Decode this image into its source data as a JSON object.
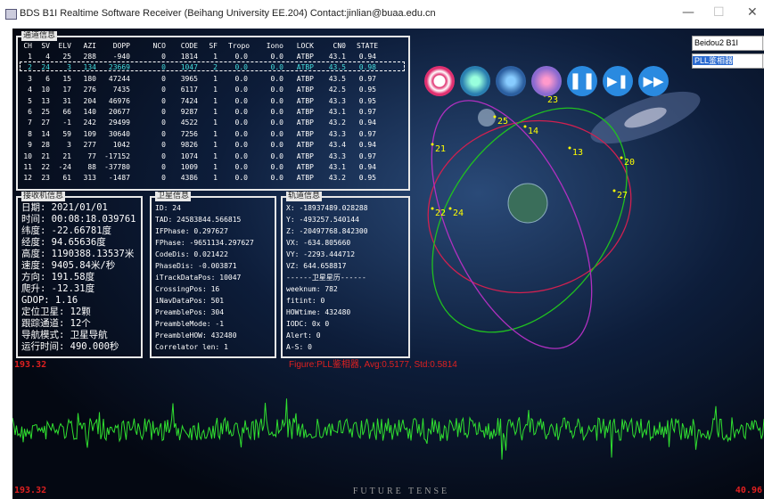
{
  "window": {
    "title": "BDS B1I Realtime Software Receiver (Beihang University EE.204) Contact:jinlian@buaa.edu.cn"
  },
  "dropdowns": [
    "Beidou2 B1I",
    "PLL鉴相器"
  ],
  "channel_panel": {
    "title": "通道信息",
    "headers": [
      "CH",
      "SV",
      "ELV",
      "AZI",
      "DOPP",
      "NCO",
      "CODE",
      "SF",
      "Tropo",
      "Iono",
      "LOCK",
      "CN0",
      "STATE"
    ],
    "rows": [
      [
        "1",
        "4",
        "25",
        "288",
        "-940",
        "0",
        "1814",
        "1",
        "0.0",
        "0.0",
        "ATBP",
        "43.1",
        "0.94"
      ],
      [
        "2",
        "24",
        "3",
        "134",
        "23669",
        "0",
        "1047",
        "2",
        "0.0",
        "0.0",
        "ATBP",
        "43.5",
        "0.98"
      ],
      [
        "3",
        "6",
        "15",
        "180",
        "47244",
        "0",
        "3965",
        "1",
        "0.0",
        "0.0",
        "ATBP",
        "43.5",
        "0.97"
      ],
      [
        "4",
        "10",
        "17",
        "276",
        "7435",
        "0",
        "6117",
        "1",
        "0.0",
        "0.0",
        "ATBP",
        "42.5",
        "0.95"
      ],
      [
        "5",
        "13",
        "31",
        "204",
        "46976",
        "0",
        "7424",
        "1",
        "0.0",
        "0.0",
        "ATBP",
        "43.3",
        "0.95"
      ],
      [
        "6",
        "25",
        "66",
        "140",
        "20677",
        "0",
        "9287",
        "1",
        "0.0",
        "0.0",
        "ATBP",
        "43.1",
        "0.97"
      ],
      [
        "7",
        "27",
        "-1",
        "242",
        "29499",
        "0",
        "4522",
        "1",
        "0.0",
        "0.0",
        "ATBP",
        "43.2",
        "0.94"
      ],
      [
        "8",
        "14",
        "59",
        "109",
        "30640",
        "0",
        "7256",
        "1",
        "0.0",
        "0.0",
        "ATBP",
        "43.3",
        "0.97"
      ],
      [
        "9",
        "28",
        "3",
        "277",
        "1042",
        "0",
        "9826",
        "1",
        "0.0",
        "0.0",
        "ATBP",
        "43.4",
        "0.94"
      ],
      [
        "10",
        "21",
        "21",
        "77",
        "-17152",
        "0",
        "1074",
        "1",
        "0.0",
        "0.0",
        "ATBP",
        "43.3",
        "0.97"
      ],
      [
        "11",
        "22",
        "-24",
        "88",
        "-37780",
        "0",
        "1009",
        "1",
        "0.0",
        "0.0",
        "ATBP",
        "43.1",
        "0.94"
      ],
      [
        "12",
        "23",
        "61",
        "313",
        "-1487",
        "0",
        "4386",
        "1",
        "0.0",
        "0.0",
        "ATBP",
        "43.2",
        "0.95"
      ]
    ]
  },
  "receiver_panel": {
    "title": "接收机信息",
    "lines": [
      "日期: 2021/01/01",
      "时间: 00:08:18.039761",
      "纬度: -22.66781度",
      "经度: 94.65636度",
      "高度: 1190388.13537米",
      "速度: 9405.84米/秒",
      "方向: 191.58度",
      "爬升: -12.31度",
      "GDOP: 1.16",
      "定位卫星: 12颗",
      "跟踪通道: 12个",
      "导航模式: 卫星导航",
      "运行时间: 490.000秒"
    ]
  },
  "satellite_panel": {
    "title": "卫星信息",
    "lines": [
      "ID: 24",
      "TAD: 24583844.566815",
      "IFPhase: 0.297627",
      "FPhase: -9651134.297627",
      "CodeDis: 0.021422",
      "PhaseDis: -0.003871",
      "iTrackDataPos: 10047",
      "CrossingPos: 16",
      "iNavDataPos: 501",
      "PreamblePos: 304",
      "PreambleMode: -1",
      "PreambleHOW: 432480",
      "Correlator len: 1"
    ]
  },
  "orbit_panel": {
    "title": "轨道信息",
    "lines": [
      "X: -18937489.028288",
      "Y: -493257.540144",
      "Z: -20497768.842300",
      "VX: -634.805660",
      "VY: -2293.444712",
      "VZ: 644.658817",
      "------卫星星历------",
      "weeknum: 782",
      "fitint: 0",
      "HOWtime: 432480",
      "IODC: 0x 0",
      "Alert: 0",
      "A-S: 0"
    ]
  },
  "sky_labels": [
    "23",
    "25",
    "14",
    "21",
    "13",
    "20",
    "27",
    "22",
    "24"
  ],
  "waveform": {
    "top_label": "193.32",
    "bottom_label": "193.32",
    "right_label": "40.96",
    "figure_label": "Figure:PLL鉴相器, Avg:0.5177, Std:0.5814",
    "footer": "FUTURE TENSE"
  }
}
